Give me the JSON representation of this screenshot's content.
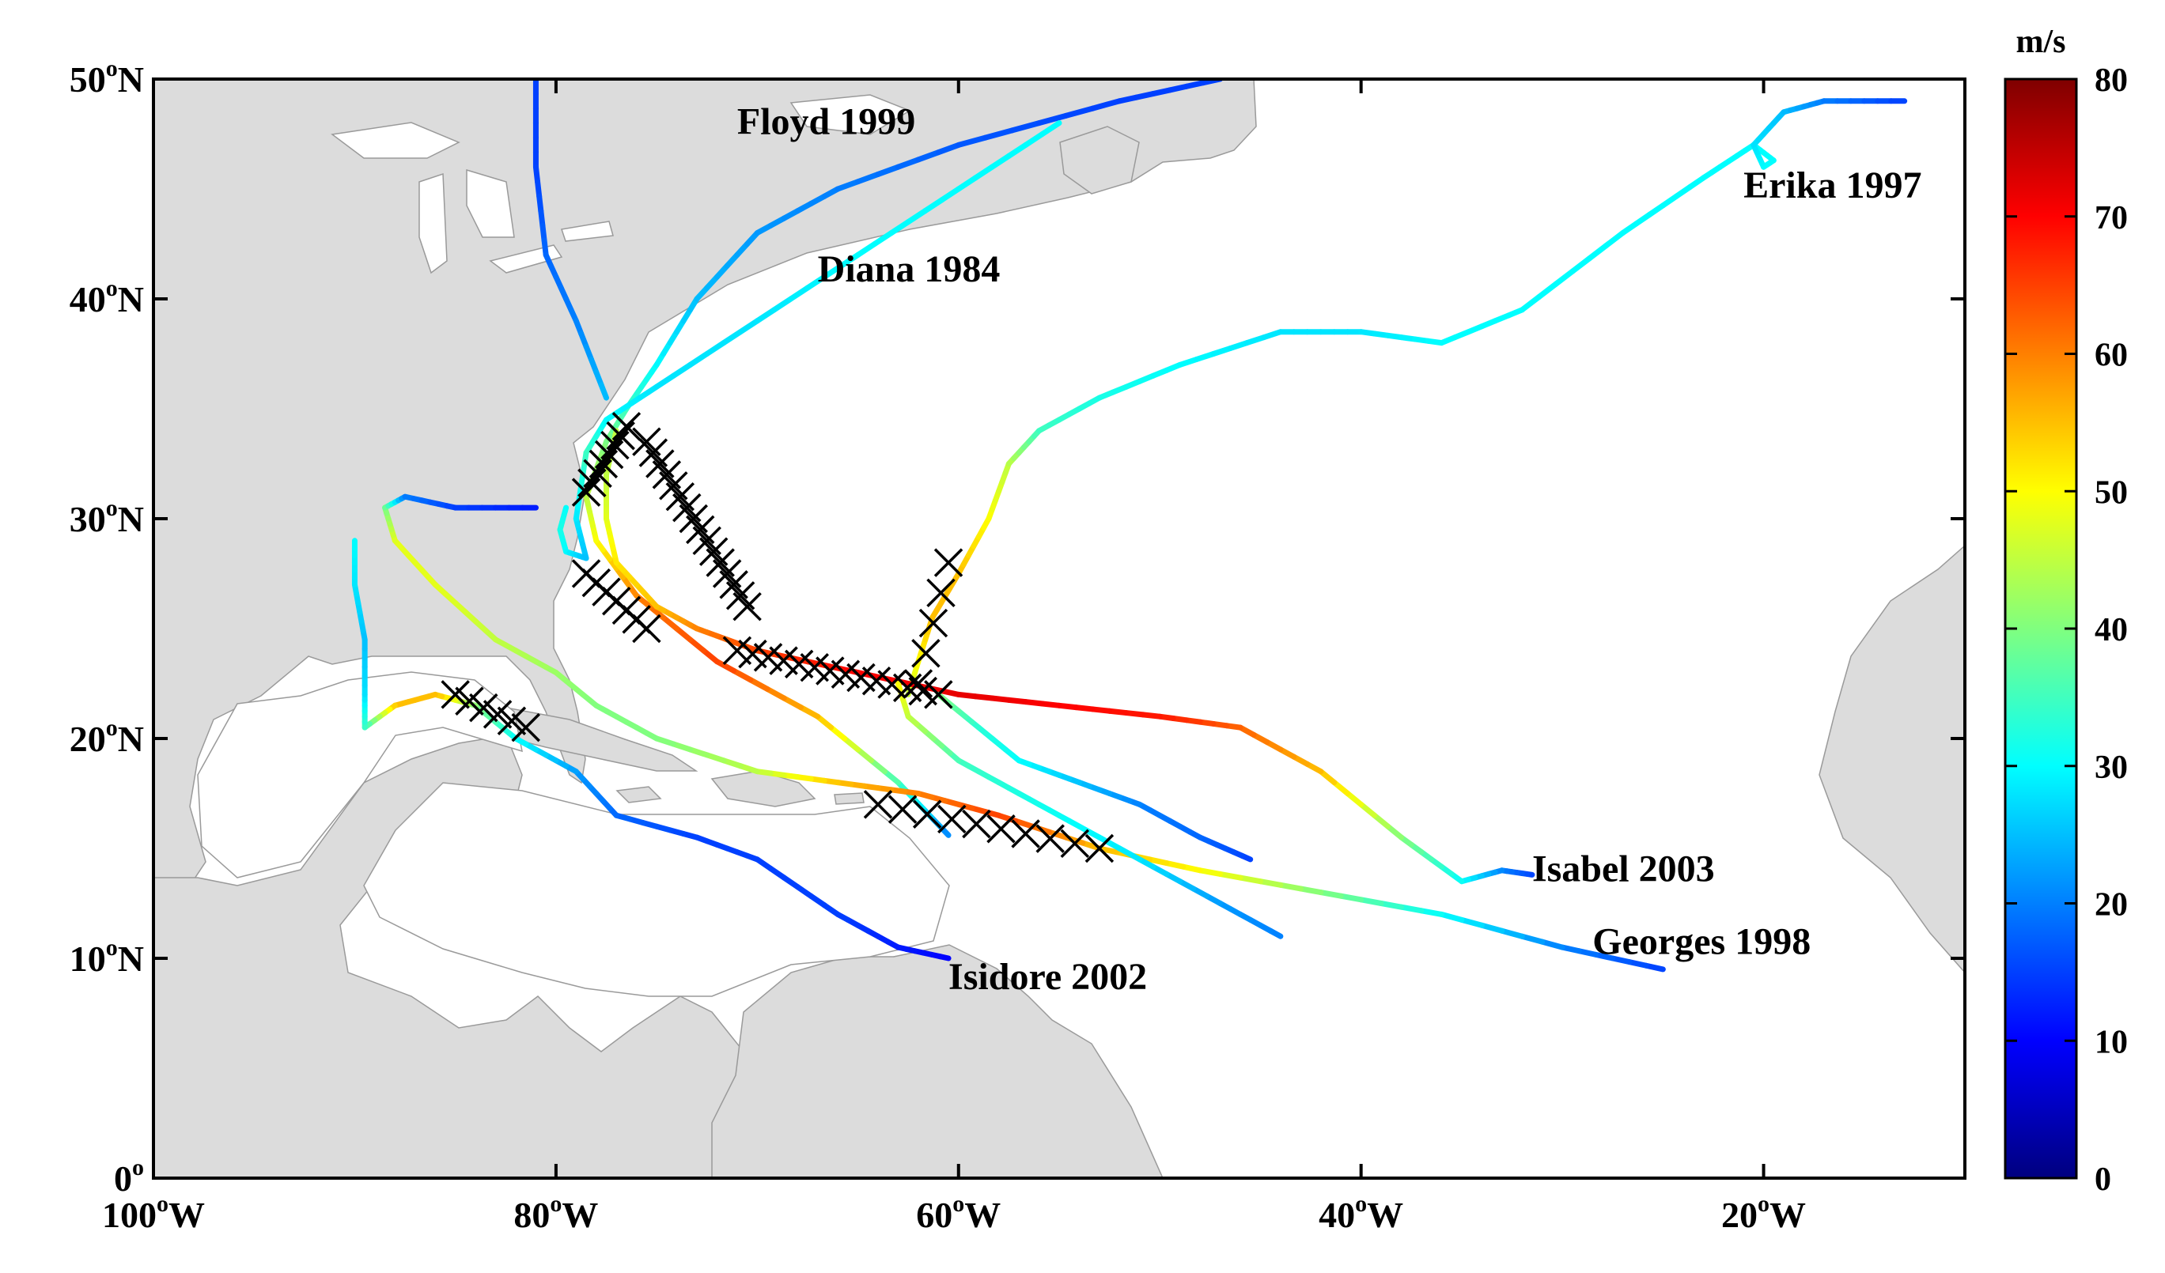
{
  "map": {
    "lon_range": [
      -100,
      -10
    ],
    "lat_range": [
      0,
      50
    ],
    "x_ticks": [
      {
        "value": -100,
        "num": "100",
        "sup": "o",
        "hem": "W"
      },
      {
        "value": -80,
        "num": "80",
        "sup": "o",
        "hem": "W"
      },
      {
        "value": -60,
        "num": "60",
        "sup": "o",
        "hem": "W"
      },
      {
        "value": -40,
        "num": "40",
        "sup": "o",
        "hem": "W"
      },
      {
        "value": -20,
        "num": "20",
        "sup": "o",
        "hem": "W"
      }
    ],
    "y_ticks": [
      {
        "value": 0,
        "num": "0",
        "sup": "o",
        "hem": ""
      },
      {
        "value": 10,
        "num": "10",
        "sup": "o",
        "hem": "N"
      },
      {
        "value": 20,
        "num": "20",
        "sup": "o",
        "hem": "N"
      },
      {
        "value": 30,
        "num": "30",
        "sup": "o",
        "hem": "N"
      },
      {
        "value": 40,
        "num": "40",
        "sup": "o",
        "hem": "N"
      },
      {
        "value": 50,
        "num": "50",
        "sup": "o",
        "hem": "N"
      }
    ],
    "land_color": "#dcdcdc",
    "ocean_color": "#ffffff"
  },
  "colorbar": {
    "unit": "m/s",
    "min": 0,
    "max": 80,
    "ticks": [
      "0",
      "10",
      "20",
      "30",
      "40",
      "50",
      "60",
      "70",
      "80"
    ],
    "colormap": "jet"
  },
  "chart_data": {
    "type": "line",
    "color_variable": "wind speed (m/s)",
    "series": [
      {
        "name": "Floyd 1999",
        "label_lonlat": [
          -71,
          47.5
        ],
        "points": [
          [
            -60.5,
            15.6,
            20
          ],
          [
            -63,
            18,
            35
          ],
          [
            -67,
            21,
            55
          ],
          [
            -72,
            23.5,
            65
          ],
          [
            -76,
            26.5,
            60
          ],
          [
            -78,
            29,
            50
          ],
          [
            -78.5,
            31,
            45
          ],
          [
            -77.5,
            33.5,
            40
          ],
          [
            -76.5,
            35,
            35
          ],
          [
            -75,
            37,
            30
          ],
          [
            -73,
            40,
            25
          ],
          [
            -70,
            43,
            22
          ],
          [
            -66,
            45,
            20
          ],
          [
            -60,
            47,
            17
          ],
          [
            -52,
            49,
            15
          ],
          [
            -47,
            50,
            15
          ]
        ]
      },
      {
        "name": "Diana 1984",
        "label_lonlat": [
          -67,
          40.8
        ],
        "points": [
          [
            -79.5,
            30.5,
            30
          ],
          [
            -79.8,
            29.5,
            32
          ],
          [
            -79.5,
            28.5,
            30
          ],
          [
            -78.5,
            28.2,
            25
          ],
          [
            -79,
            30,
            28
          ],
          [
            -78.5,
            33,
            35
          ],
          [
            -77.5,
            34.5,
            30
          ],
          [
            -75,
            36,
            28
          ],
          [
            -70,
            39,
            28
          ],
          [
            -65,
            42,
            30
          ],
          [
            -60,
            45,
            30
          ],
          [
            -55,
            48,
            30
          ]
        ]
      },
      {
        "name": "Erika 1997",
        "label_lonlat": [
          -21,
          44.6
        ],
        "points": [
          [
            -62.5,
            22,
            45
          ],
          [
            -62,
            23.5,
            50
          ],
          [
            -61.3,
            25.5,
            55
          ],
          [
            -60,
            27.5,
            55
          ],
          [
            -58.5,
            30,
            50
          ],
          [
            -57.5,
            32.5,
            45
          ],
          [
            -56,
            34,
            35
          ],
          [
            -53,
            35.5,
            32
          ],
          [
            -49,
            37,
            30
          ],
          [
            -44,
            38.5,
            28
          ],
          [
            -40,
            38.5,
            28
          ],
          [
            -36,
            38,
            30
          ],
          [
            -32,
            39.5,
            30
          ],
          [
            -27,
            43,
            30
          ],
          [
            -23,
            45.5,
            30
          ],
          [
            -20.5,
            47,
            30
          ],
          [
            -19.5,
            46.3,
            30
          ],
          [
            -20,
            46,
            30
          ],
          [
            -20.5,
            47,
            28
          ],
          [
            -19,
            48.5,
            25
          ],
          [
            -17,
            49,
            20
          ],
          [
            -13,
            49,
            15
          ]
        ]
      },
      {
        "name": "Isabel 2003",
        "label_lonlat": [
          -31.5,
          13.5
        ],
        "points": [
          [
            -31.5,
            13.8,
            15
          ],
          [
            -33,
            14,
            20
          ],
          [
            -35,
            13.5,
            30
          ],
          [
            -38,
            15.5,
            40
          ],
          [
            -42,
            18.5,
            55
          ],
          [
            -46,
            20.5,
            62
          ],
          [
            -50,
            21,
            68
          ],
          [
            -55,
            21.5,
            70
          ],
          [
            -60,
            22,
            72
          ],
          [
            -65,
            23,
            70
          ],
          [
            -70,
            24,
            65
          ],
          [
            -73,
            25,
            60
          ],
          [
            -75,
            26,
            55
          ],
          [
            -77,
            28,
            52
          ],
          [
            -77.5,
            30,
            48
          ],
          [
            -77.5,
            32,
            45
          ],
          [
            -77,
            34,
            45
          ]
        ]
      },
      {
        "name": "Georges 1998",
        "label_lonlat": [
          -28.5,
          10.2
        ],
        "points": [
          [
            -25,
            9.5,
            15
          ],
          [
            -30,
            10.5,
            20
          ],
          [
            -36,
            12,
            30
          ],
          [
            -42,
            13,
            40
          ],
          [
            -48,
            14,
            50
          ],
          [
            -53,
            15,
            55
          ],
          [
            -58,
            16.5,
            65
          ],
          [
            -62,
            17.5,
            60
          ],
          [
            -66,
            18,
            55
          ],
          [
            -70,
            18.5,
            45
          ],
          [
            -75,
            20,
            40
          ],
          [
            -78,
            21.5,
            40
          ],
          [
            -80,
            23,
            42
          ],
          [
            -83,
            24.5,
            45
          ],
          [
            -86,
            27,
            48
          ],
          [
            -88,
            29,
            48
          ],
          [
            -88.5,
            30.5,
            40
          ],
          [
            -87.5,
            31,
            20
          ],
          [
            -85,
            30.5,
            15
          ],
          [
            -81,
            30.5,
            12
          ]
        ]
      },
      {
        "name": "Isidore 2002",
        "label_lonlat": [
          -60.5,
          8.6
        ],
        "points": [
          [
            -60.5,
            10,
            10
          ],
          [
            -63,
            10.5,
            12
          ],
          [
            -66,
            12,
            15
          ],
          [
            -70,
            14.5,
            15
          ],
          [
            -73,
            15.5,
            15
          ],
          [
            -77,
            16.5,
            18
          ],
          [
            -79,
            18.5,
            22
          ],
          [
            -82,
            20,
            30
          ],
          [
            -84,
            21.5,
            40
          ],
          [
            -86,
            22,
            55
          ],
          [
            -88,
            21.5,
            55
          ],
          [
            -89.5,
            20.5,
            35
          ],
          [
            -89.5,
            22,
            28
          ],
          [
            -89.5,
            24.5,
            25
          ],
          [
            -90,
            27,
            28
          ],
          [
            -90,
            29,
            30
          ]
        ]
      },
      {
        "name": "",
        "label_lonlat": null,
        "points": [
          [
            -44,
            11,
            20
          ],
          [
            -47,
            12.5,
            22
          ],
          [
            -51,
            14.5,
            28
          ],
          [
            -54,
            16,
            30
          ],
          [
            -57,
            17.5,
            32
          ],
          [
            -60,
            19,
            35
          ],
          [
            -62.5,
            21,
            45
          ],
          [
            -63,
            22.5,
            50
          ]
        ]
      },
      {
        "name": "",
        "label_lonlat": null,
        "points": [
          [
            -45.5,
            14.5,
            15
          ],
          [
            -48,
            15.5,
            18
          ],
          [
            -51,
            17,
            20
          ],
          [
            -54,
            18,
            25
          ],
          [
            -57,
            19,
            30
          ],
          [
            -59,
            20.5,
            33
          ],
          [
            -61,
            22,
            40
          ]
        ]
      },
      {
        "name": "",
        "label_lonlat": null,
        "points": [
          [
            -81,
            50,
            15
          ],
          [
            -81,
            46,
            15
          ],
          [
            -80.5,
            42,
            18
          ],
          [
            -79,
            39,
            20
          ],
          [
            -77.5,
            35.5,
            25
          ]
        ]
      }
    ],
    "markers": {
      "symbol": "x",
      "groups": [
        {
          "from": [
            -78.5,
            31.2
          ],
          "to": [
            -76.5,
            34.2
          ],
          "count": 8
        },
        {
          "from": [
            -75.5,
            33.5
          ],
          "to": [
            -70.5,
            26.0
          ],
          "count": 16
        },
        {
          "from": [
            -78.5,
            27.5
          ],
          "to": [
            -75.5,
            25.0
          ],
          "count": 7
        },
        {
          "from": [
            -71.0,
            24.0
          ],
          "to": [
            -61.0,
            22.0
          ],
          "count": 14
        },
        {
          "from": [
            -62.0,
            22.5
          ],
          "to": [
            -60.5,
            28.0
          ],
          "count": 5
        },
        {
          "from": [
            -85.0,
            22.0
          ],
          "to": [
            -81.5,
            20.5
          ],
          "count": 6
        },
        {
          "from": [
            -64.0,
            17.0
          ],
          "to": [
            -53.0,
            15.0
          ],
          "count": 10
        }
      ]
    }
  }
}
